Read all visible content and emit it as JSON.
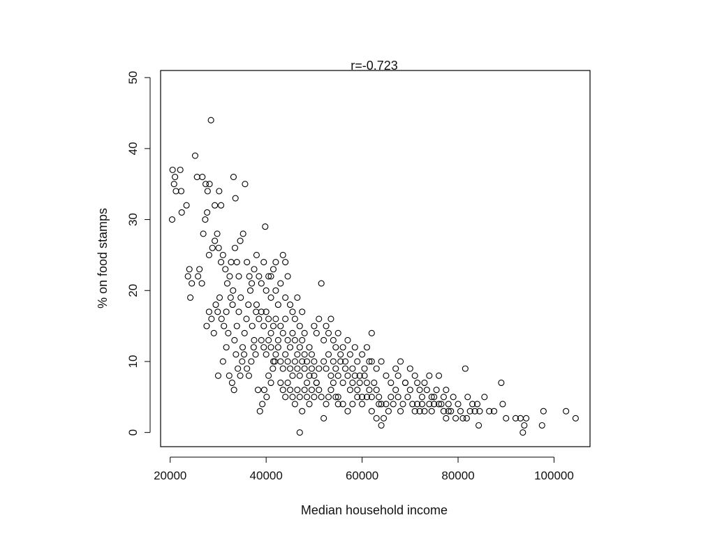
{
  "chart_data": {
    "type": "scatter",
    "title": "r=-0.723",
    "xlabel": "Median household income",
    "ylabel": "% on food stamps",
    "xlim": [
      18000,
      107500
    ],
    "ylim": [
      -2,
      51
    ],
    "xticks": [
      20000,
      40000,
      60000,
      80000,
      100000
    ],
    "yticks": [
      0,
      10,
      20,
      30,
      40,
      50
    ],
    "xtick_labels": [
      "20000",
      "40000",
      "60000",
      "80000",
      "100000"
    ],
    "ytick_labels": [
      "0",
      "10",
      "20",
      "30",
      "40",
      "50"
    ],
    "grid": false,
    "marker": "open-circle",
    "point_color": "#000000",
    "points": [
      [
        20500,
        37
      ],
      [
        21000,
        36
      ],
      [
        21200,
        34
      ],
      [
        20800,
        35
      ],
      [
        20400,
        30
      ],
      [
        22100,
        37
      ],
      [
        22300,
        34
      ],
      [
        22400,
        31
      ],
      [
        23400,
        32
      ],
      [
        25200,
        39
      ],
      [
        25600,
        36
      ],
      [
        26700,
        36
      ],
      [
        27400,
        35
      ],
      [
        27800,
        34
      ],
      [
        28200,
        35
      ],
      [
        28500,
        44
      ],
      [
        29300,
        32
      ],
      [
        30200,
        34
      ],
      [
        30600,
        32
      ],
      [
        33200,
        36
      ],
      [
        33600,
        33
      ],
      [
        35600,
        35
      ],
      [
        34600,
        27
      ],
      [
        35200,
        28
      ],
      [
        39800,
        29
      ],
      [
        23700,
        22
      ],
      [
        24000,
        23
      ],
      [
        24500,
        21
      ],
      [
        24200,
        19
      ],
      [
        25800,
        22
      ],
      [
        26100,
        23
      ],
      [
        26600,
        21
      ],
      [
        26900,
        28
      ],
      [
        27300,
        30
      ],
      [
        27700,
        31
      ],
      [
        28100,
        25
      ],
      [
        28800,
        26
      ],
      [
        29300,
        27
      ],
      [
        29800,
        28
      ],
      [
        30100,
        26
      ],
      [
        30600,
        24
      ],
      [
        31000,
        25
      ],
      [
        31500,
        23
      ],
      [
        31900,
        21
      ],
      [
        32400,
        22
      ],
      [
        32700,
        24
      ],
      [
        33100,
        20
      ],
      [
        33500,
        26
      ],
      [
        33900,
        24
      ],
      [
        34300,
        22
      ],
      [
        27600,
        15
      ],
      [
        28100,
        17
      ],
      [
        28600,
        16
      ],
      [
        29100,
        14
      ],
      [
        29500,
        18
      ],
      [
        29900,
        17
      ],
      [
        30300,
        19
      ],
      [
        30700,
        16
      ],
      [
        31200,
        15
      ],
      [
        31700,
        17
      ],
      [
        32100,
        14
      ],
      [
        32600,
        19
      ],
      [
        33000,
        18
      ],
      [
        33400,
        13
      ],
      [
        33900,
        15
      ],
      [
        34300,
        17
      ],
      [
        34700,
        19
      ],
      [
        35100,
        12
      ],
      [
        35500,
        14
      ],
      [
        35900,
        16
      ],
      [
        36300,
        18
      ],
      [
        36700,
        20
      ],
      [
        37100,
        15
      ],
      [
        37500,
        13
      ],
      [
        37900,
        17
      ],
      [
        30000,
        8
      ],
      [
        31000,
        10
      ],
      [
        31700,
        12
      ],
      [
        32300,
        8
      ],
      [
        32900,
        7
      ],
      [
        33300,
        6
      ],
      [
        33700,
        11
      ],
      [
        34100,
        9
      ],
      [
        34600,
        8
      ],
      [
        35000,
        10
      ],
      [
        35400,
        11
      ],
      [
        36000,
        9
      ],
      [
        36400,
        8
      ],
      [
        36900,
        10
      ],
      [
        37400,
        12
      ],
      [
        37800,
        11
      ],
      [
        38300,
        6
      ],
      [
        38700,
        3
      ],
      [
        39200,
        4
      ],
      [
        39600,
        6
      ],
      [
        40100,
        5
      ],
      [
        40500,
        8
      ],
      [
        41000,
        7
      ],
      [
        41400,
        9
      ],
      [
        41800,
        10
      ],
      [
        36000,
        24
      ],
      [
        36500,
        22
      ],
      [
        37000,
        21
      ],
      [
        37500,
        23
      ],
      [
        38000,
        25
      ],
      [
        38500,
        22
      ],
      [
        39000,
        21
      ],
      [
        39500,
        24
      ],
      [
        40000,
        20
      ],
      [
        40500,
        22
      ],
      [
        41000,
        19
      ],
      [
        41500,
        23
      ],
      [
        42000,
        20
      ],
      [
        42500,
        18
      ],
      [
        43000,
        21
      ],
      [
        43500,
        25
      ],
      [
        44000,
        19
      ],
      [
        44500,
        22
      ],
      [
        45000,
        18
      ],
      [
        45500,
        17
      ],
      [
        46000,
        16
      ],
      [
        46500,
        19
      ],
      [
        47000,
        15
      ],
      [
        47500,
        17
      ],
      [
        48000,
        14
      ],
      [
        38000,
        18
      ],
      [
        38500,
        16
      ],
      [
        39000,
        17
      ],
      [
        39500,
        15
      ],
      [
        40000,
        17
      ],
      [
        40500,
        16
      ],
      [
        41000,
        14
      ],
      [
        41500,
        15
      ],
      [
        42000,
        16
      ],
      [
        42500,
        13
      ],
      [
        43000,
        15
      ],
      [
        43500,
        14
      ],
      [
        44000,
        16
      ],
      [
        44500,
        13
      ],
      [
        45000,
        12
      ],
      [
        45500,
        14
      ],
      [
        46000,
        13
      ],
      [
        46500,
        11
      ],
      [
        47000,
        12
      ],
      [
        47500,
        13
      ],
      [
        48000,
        11
      ],
      [
        48500,
        10
      ],
      [
        49000,
        12
      ],
      [
        49500,
        11
      ],
      [
        50000,
        10
      ],
      [
        39000,
        13
      ],
      [
        39500,
        12
      ],
      [
        40000,
        11
      ],
      [
        40500,
        13
      ],
      [
        41000,
        12
      ],
      [
        41500,
        10
      ],
      [
        42000,
        11
      ],
      [
        42500,
        12
      ],
      [
        43000,
        10
      ],
      [
        43500,
        9
      ],
      [
        44000,
        11
      ],
      [
        44500,
        10
      ],
      [
        45000,
        9
      ],
      [
        45500,
        8
      ],
      [
        46000,
        10
      ],
      [
        46500,
        9
      ],
      [
        47000,
        8
      ],
      [
        47500,
        10
      ],
      [
        48000,
        9
      ],
      [
        48500,
        7
      ],
      [
        49000,
        8
      ],
      [
        49500,
        9
      ],
      [
        50000,
        8
      ],
      [
        50500,
        7
      ],
      [
        51000,
        9
      ],
      [
        43000,
        7
      ],
      [
        43500,
        6
      ],
      [
        44000,
        5
      ],
      [
        44500,
        7
      ],
      [
        45000,
        6
      ],
      [
        45500,
        5
      ],
      [
        46000,
        4
      ],
      [
        46500,
        6
      ],
      [
        47000,
        5
      ],
      [
        47500,
        3
      ],
      [
        48000,
        6
      ],
      [
        48500,
        5
      ],
      [
        49000,
        4
      ],
      [
        49500,
        6
      ],
      [
        50000,
        5
      ],
      [
        50500,
        7
      ],
      [
        51000,
        6
      ],
      [
        51500,
        5
      ],
      [
        52000,
        2
      ],
      [
        52500,
        4
      ],
      [
        53000,
        5
      ],
      [
        53500,
        6
      ],
      [
        54000,
        7
      ],
      [
        54500,
        5
      ],
      [
        55000,
        4
      ],
      [
        50000,
        15
      ],
      [
        50500,
        14
      ],
      [
        51000,
        16
      ],
      [
        51500,
        21
      ],
      [
        52000,
        13
      ],
      [
        52500,
        15
      ],
      [
        53000,
        14
      ],
      [
        53500,
        16
      ],
      [
        54000,
        13
      ],
      [
        54500,
        12
      ],
      [
        55000,
        14
      ],
      [
        55500,
        11
      ],
      [
        56000,
        12
      ],
      [
        56500,
        10
      ],
      [
        57000,
        13
      ],
      [
        57500,
        11
      ],
      [
        58000,
        9
      ],
      [
        58500,
        12
      ],
      [
        59000,
        10
      ],
      [
        59500,
        8
      ],
      [
        60000,
        11
      ],
      [
        60500,
        9
      ],
      [
        61000,
        12
      ],
      [
        61500,
        10
      ],
      [
        62000,
        14
      ],
      [
        52000,
        10
      ],
      [
        52500,
        9
      ],
      [
        53000,
        11
      ],
      [
        53500,
        8
      ],
      [
        54000,
        10
      ],
      [
        54500,
        9
      ],
      [
        55000,
        8
      ],
      [
        55500,
        10
      ],
      [
        56000,
        7
      ],
      [
        56500,
        9
      ],
      [
        57000,
        8
      ],
      [
        57500,
        6
      ],
      [
        58000,
        7
      ],
      [
        58500,
        8
      ],
      [
        59000,
        6
      ],
      [
        59500,
        7
      ],
      [
        60000,
        5
      ],
      [
        60500,
        8
      ],
      [
        61000,
        7
      ],
      [
        61500,
        6
      ],
      [
        62000,
        5
      ],
      [
        62500,
        7
      ],
      [
        63000,
        6
      ],
      [
        63500,
        5
      ],
      [
        64000,
        4
      ],
      [
        55000,
        5
      ],
      [
        56000,
        4
      ],
      [
        57000,
        3
      ],
      [
        58000,
        4
      ],
      [
        59000,
        5
      ],
      [
        60000,
        4
      ],
      [
        61000,
        5
      ],
      [
        62000,
        3
      ],
      [
        63000,
        2
      ],
      [
        63500,
        4
      ],
      [
        64000,
        1
      ],
      [
        64500,
        2
      ],
      [
        65000,
        4
      ],
      [
        65500,
        3
      ],
      [
        66000,
        5
      ],
      [
        66500,
        4
      ],
      [
        67000,
        6
      ],
      [
        67500,
        5
      ],
      [
        68000,
        3
      ],
      [
        68500,
        4
      ],
      [
        69000,
        7
      ],
      [
        69500,
        5
      ],
      [
        70000,
        6
      ],
      [
        70500,
        4
      ],
      [
        71000,
        3
      ],
      [
        62000,
        10
      ],
      [
        63000,
        9
      ],
      [
        64000,
        10
      ],
      [
        65000,
        8
      ],
      [
        66000,
        7
      ],
      [
        67000,
        9
      ],
      [
        67500,
        8
      ],
      [
        68000,
        10
      ],
      [
        69000,
        7
      ],
      [
        70000,
        9
      ],
      [
        71000,
        8
      ],
      [
        71500,
        7
      ],
      [
        72000,
        6
      ],
      [
        72500,
        5
      ],
      [
        73000,
        7
      ],
      [
        73500,
        6
      ],
      [
        74000,
        8
      ],
      [
        74500,
        5
      ],
      [
        75000,
        4
      ],
      [
        75500,
        6
      ],
      [
        76000,
        8
      ],
      [
        76500,
        4
      ],
      [
        77000,
        5
      ],
      [
        77500,
        6
      ],
      [
        78000,
        3
      ],
      [
        71500,
        4
      ],
      [
        72000,
        3
      ],
      [
        72500,
        4
      ],
      [
        73000,
        3
      ],
      [
        74000,
        4
      ],
      [
        74500,
        3
      ],
      [
        75000,
        5
      ],
      [
        76000,
        4
      ],
      [
        77000,
        3
      ],
      [
        77500,
        2
      ],
      [
        78000,
        4
      ],
      [
        78500,
        3
      ],
      [
        79000,
        5
      ],
      [
        79500,
        2
      ],
      [
        80000,
        4
      ],
      [
        80500,
        3
      ],
      [
        81000,
        2
      ],
      [
        81500,
        9
      ],
      [
        81800,
        2
      ],
      [
        82000,
        5
      ],
      [
        82500,
        3
      ],
      [
        83000,
        4
      ],
      [
        83500,
        3
      ],
      [
        84000,
        4
      ],
      [
        84300,
        1
      ],
      [
        84500,
        3
      ],
      [
        85500,
        5
      ],
      [
        86500,
        3
      ],
      [
        87500,
        3
      ],
      [
        89000,
        7
      ],
      [
        89300,
        4
      ],
      [
        90000,
        2
      ],
      [
        92000,
        2
      ],
      [
        93000,
        2
      ],
      [
        93500,
        0
      ],
      [
        93800,
        1
      ],
      [
        94200,
        2
      ],
      [
        97500,
        1
      ],
      [
        97800,
        3
      ],
      [
        102500,
        3
      ],
      [
        104500,
        2
      ],
      [
        47000,
        0
      ],
      [
        42000,
        24
      ],
      [
        44000,
        24
      ],
      [
        41000,
        22
      ]
    ]
  }
}
